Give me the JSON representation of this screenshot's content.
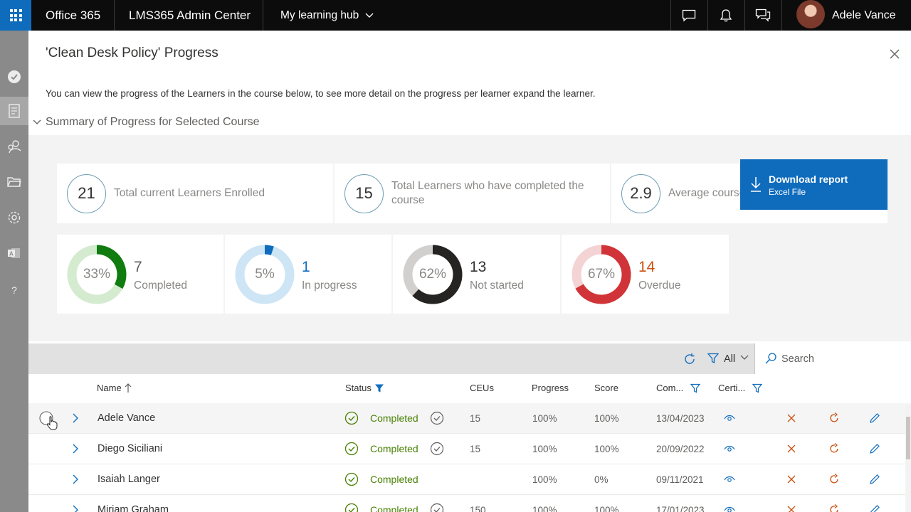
{
  "topbar": {
    "brand": "Office 365",
    "app": "LMS365 Admin Center",
    "hub": "My learning hub",
    "user": "Adele Vance"
  },
  "panel": {
    "title": "'Clean Desk Policy' Progress",
    "description": "You can view the progress of the Learners in the course below, to see more detail on the progress per learner expand the learner.",
    "summary_heading": "Summary of Progress for Selected Course"
  },
  "stats": [
    {
      "value": "21",
      "label": "Total current Learners Enrolled"
    },
    {
      "value": "15",
      "label": "Total Learners who have completed the course"
    },
    {
      "value": "2.9",
      "label": "Average course rating"
    }
  ],
  "donuts": [
    {
      "pct_label": "33%",
      "fraction": 0.33,
      "count": "7",
      "label": "Completed",
      "color": "#107c10",
      "track": "#d4ebd0",
      "count_color": "#605e5c"
    },
    {
      "pct_label": "5%",
      "fraction": 0.05,
      "count": "1",
      "label": "In progress",
      "color": "#0f6cbd",
      "track": "#cde5f5",
      "count_color": "#0f6cbd"
    },
    {
      "pct_label": "62%",
      "fraction": 0.62,
      "count": "13",
      "label": "Not started",
      "color": "#252423",
      "track": "#d2d0ce",
      "count_color": "#323130"
    },
    {
      "pct_label": "67%",
      "fraction": 0.67,
      "count": "14",
      "label": "Overdue",
      "color": "#d13438",
      "track": "#f4d3d4",
      "count_color": "#ca5010"
    }
  ],
  "download": {
    "title": "Download report",
    "subtitle": "Excel File"
  },
  "toolbar": {
    "filter_value": "All",
    "search_placeholder": "Search"
  },
  "columns": {
    "name": "Name",
    "status": "Status",
    "ceus": "CEUs",
    "progress": "Progress",
    "score": "Score",
    "completed": "Com...",
    "certificate": "Certi..."
  },
  "rows": [
    {
      "name": "Adele Vance",
      "status": "Completed",
      "ceus": "15",
      "progress": "100%",
      "score": "100%",
      "completed": "13/04/2023",
      "has_cert_check": true
    },
    {
      "name": "Diego Siciliani",
      "status": "Completed",
      "ceus": "15",
      "progress": "100%",
      "score": "100%",
      "completed": "20/09/2022",
      "has_cert_check": true
    },
    {
      "name": "Isaiah Langer",
      "status": "Completed",
      "ceus": "",
      "progress": "100%",
      "score": "0%",
      "completed": "09/11/2021",
      "has_cert_check": false
    },
    {
      "name": "Miriam Graham",
      "status": "Completed",
      "ceus": "150",
      "progress": "100%",
      "score": "100%",
      "completed": "17/01/2023",
      "has_cert_check": true
    }
  ]
}
